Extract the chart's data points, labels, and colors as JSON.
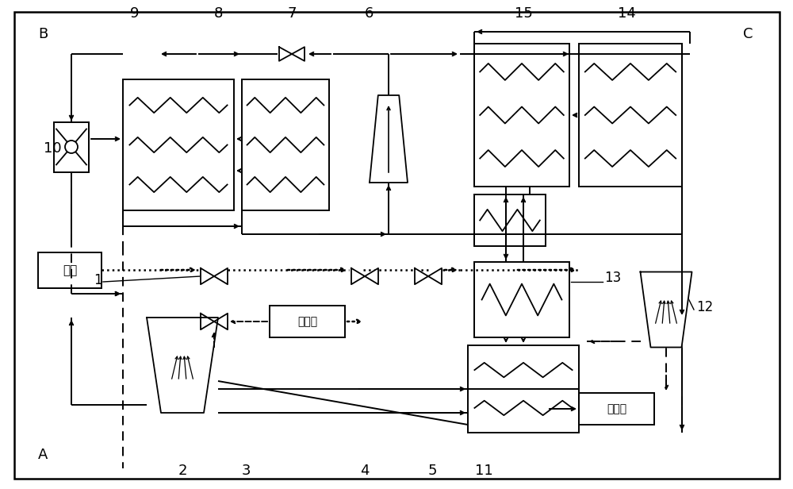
{
  "bg_color": "#ffffff",
  "line_color": "#000000",
  "cabin_text": "车厄",
  "jinfengkou_text": "进风口",
  "paifengkou_text": "排风口"
}
